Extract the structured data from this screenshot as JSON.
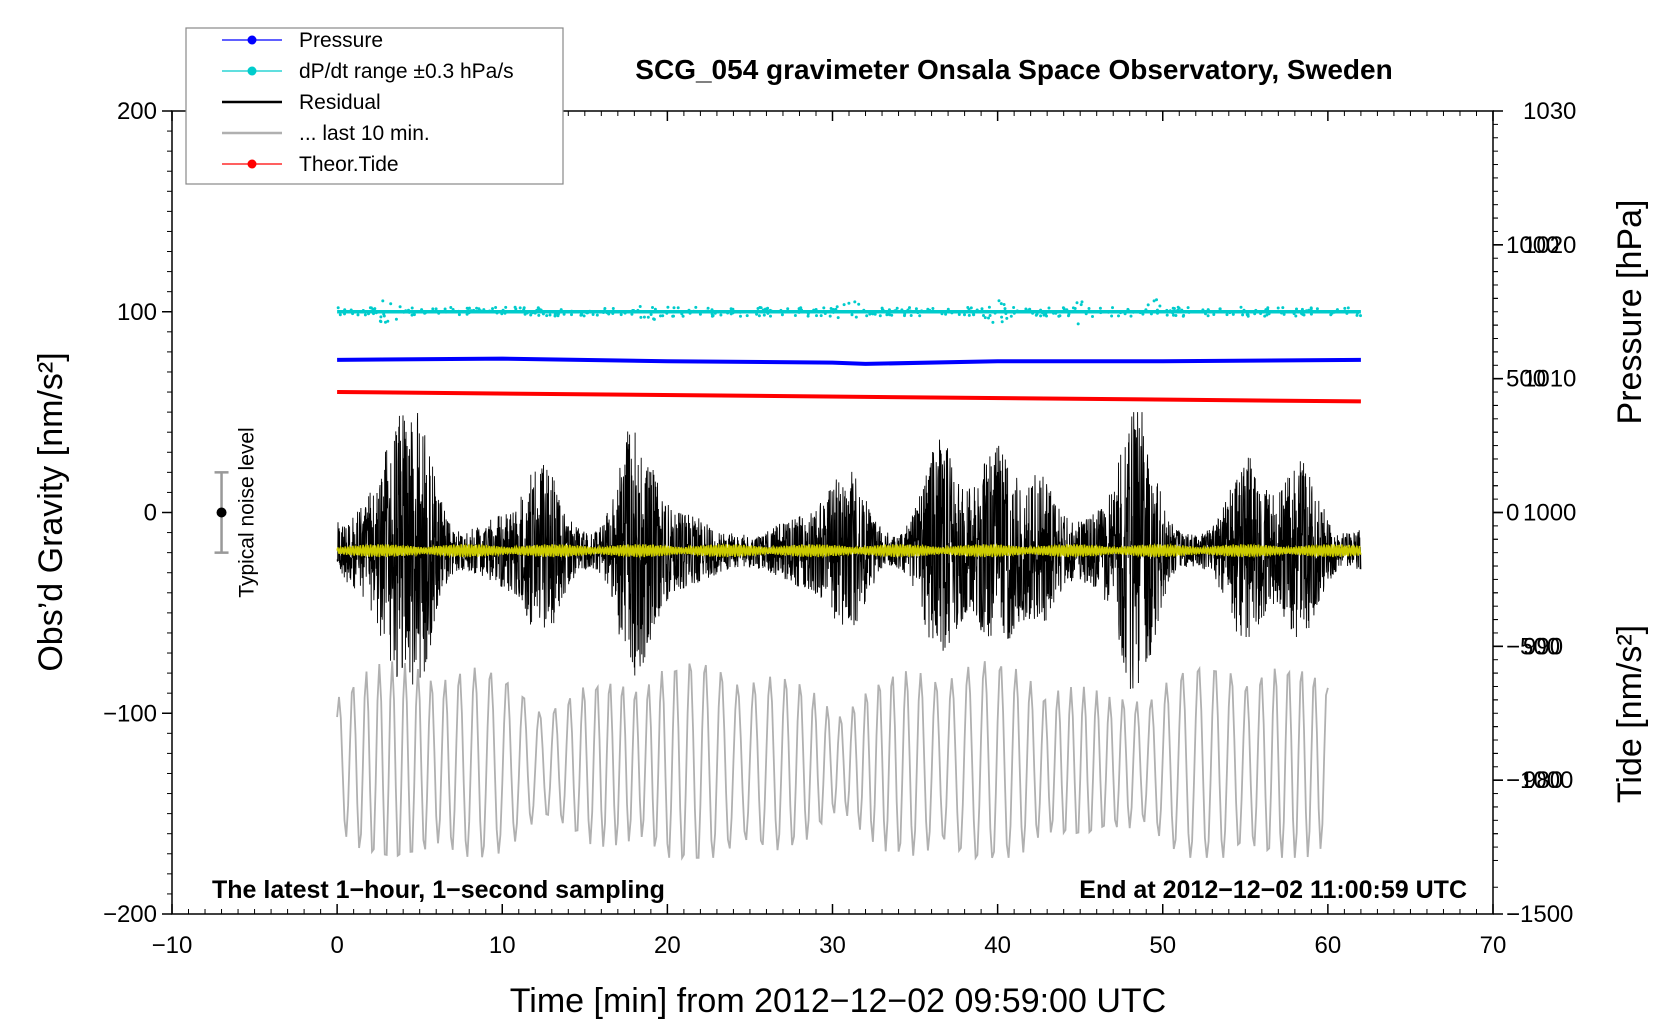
{
  "chart_data": {
    "type": "line",
    "title": "SCG_054 gravimeter Onsala Space Observatory, Sweden",
    "xlabel": "Time [min] from 2012−12−02 09:59:00 UTC",
    "ylabel_left": "Obs’d Gravity [nm/s²]",
    "ylabel_right_top": "Pressure [hPa]",
    "ylabel_right_bottom": "Tide [nm/s²]",
    "xlim": [
      -10,
      70
    ],
    "ylim_left": [
      -200,
      200
    ],
    "ylim_pressure": [
      970,
      1030
    ],
    "ylim_tide": [
      -1500,
      1500
    ],
    "x_ticks": [
      -10,
      0,
      10,
      20,
      30,
      40,
      50,
      60,
      70
    ],
    "x_tick_labels": [
      "−10",
      "0",
      "10",
      "20",
      "30",
      "40",
      "50",
      "60",
      "70"
    ],
    "y_left_ticks": [
      -200,
      -100,
      0,
      100,
      200
    ],
    "y_left_tick_labels": [
      "−200",
      "−100",
      "0",
      "100",
      "200"
    ],
    "pressure_ticks": [
      980,
      990,
      1000,
      1010,
      1020,
      1030
    ],
    "pressure_tick_labels": [
      "980",
      "990",
      "1000",
      "1010",
      "1020",
      "1030"
    ],
    "tide_ticks": [
      -1500,
      -1000,
      -500,
      0,
      500,
      1000
    ],
    "tide_tick_labels": [
      "−1500",
      "−1000",
      "−500",
      "0",
      "500",
      "1000"
    ],
    "legend": [
      {
        "label": "Pressure",
        "color": "#0000ff",
        "marker": true
      },
      {
        "label": "dP/dt range ±0.3 hPa/s",
        "color": "#00cccc",
        "marker": true
      },
      {
        "label": "Residual",
        "color": "#000000",
        "marker": false
      },
      {
        "label": "... last 10 min.",
        "color": "#b0b0b0",
        "marker": false
      },
      {
        "label": "Theor.Tide",
        "color": "#ff0000",
        "marker": true
      }
    ],
    "legend_position": "top-left",
    "series": [
      {
        "name": "Pressure",
        "axis": "pressure",
        "color": "#0000ff",
        "x": [
          0,
          10,
          20,
          30,
          32,
          40,
          50,
          62
        ],
        "values": [
          1011.4,
          1011.5,
          1011.3,
          1011.2,
          1011.1,
          1011.3,
          1011.3,
          1011.4
        ]
      },
      {
        "name": "dP/dt range",
        "axis": "left",
        "color": "#00cccc",
        "x": [
          0,
          62
        ],
        "values": [
          100,
          100
        ],
        "scatter_amplitude_left_units": 5
      },
      {
        "name": "Residual",
        "axis": "left",
        "color": "#000000",
        "x": [
          0,
          62
        ],
        "values": [
          -19,
          -19
        ],
        "envelope_max": 50,
        "envelope_min": -95
      },
      {
        "name": "Residual (smoothed)",
        "axis": "left",
        "color": "#cccc00",
        "x": [
          0,
          62
        ],
        "values": [
          -19,
          -19
        ]
      },
      {
        "name": "Theor.Tide",
        "axis": "tide",
        "color": "#ff0000",
        "x": [
          0,
          62
        ],
        "values": [
          450,
          415
        ]
      },
      {
        "name": "... last 10 min.",
        "axis": "left",
        "color": "#b0b0b0",
        "x": [
          0,
          60
        ],
        "center": -125,
        "amplitude_range": [
          -170,
          -80
        ]
      }
    ],
    "noise_bar": {
      "label": "Typical noise level",
      "x": -7,
      "center": 0,
      "low": -20,
      "high": 20
    },
    "annotations": {
      "bottom_left": "The latest 1−hour, 1−second sampling",
      "bottom_right": "End at 2012−12−02 11:00:59 UTC"
    }
  }
}
